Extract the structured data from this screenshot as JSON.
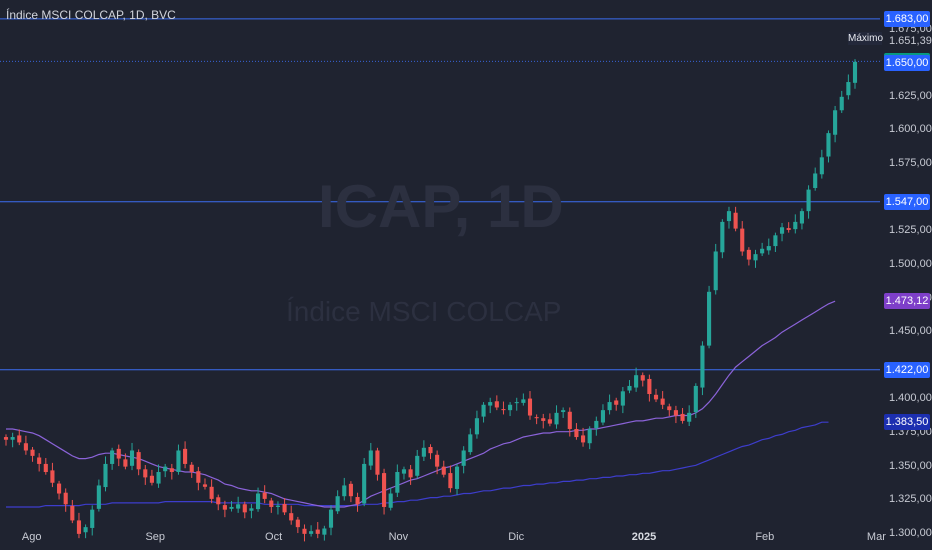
{
  "header": {
    "title": "Índice MSCI COLCAP, 1D, BVC"
  },
  "watermark": {
    "symbol": "ICAP, 1D",
    "name": "Índice MSCI COLCAP"
  },
  "colors": {
    "background": "#1f2330",
    "up": "#26a69a",
    "down": "#ef5350",
    "level_line": "#3b6df0",
    "ma_fast": "#8b63d9",
    "ma_slow": "#3d3dcc",
    "badge_blue": "#2962ff",
    "badge_green": "#089981",
    "badge_purple": "#7e3fc9",
    "badge_navy": "#1c2fb0"
  },
  "labels": {
    "max_label": "Máximo"
  },
  "chart_data": {
    "type": "candlestick",
    "title": "Índice MSCI COLCAP, 1D, BVC",
    "y_axis": {
      "ylim": [
        1288,
        1697
      ],
      "ticks": [
        "1.300,00",
        "1.325,00",
        "1.350,00",
        "1.375,00",
        "1.400,00",
        "1.450,00",
        "1.475,00",
        "1.500,00",
        "1.525,00",
        "1.575,00",
        "1.600,00",
        "1.625,00",
        "1.675,00"
      ],
      "tick_values": [
        1300,
        1325,
        1350,
        1375,
        1400,
        1450,
        1475,
        1500,
        1525,
        1575,
        1600,
        1625,
        1675
      ]
    },
    "x_axis": {
      "labels": [
        {
          "text": "Ago",
          "date": "2024-08-01",
          "bold": false
        },
        {
          "text": "Sep",
          "date": "2024-09-01",
          "bold": false
        },
        {
          "text": "Oct",
          "date": "2024-10-01",
          "bold": false
        },
        {
          "text": "Nov",
          "date": "2024-11-01",
          "bold": false
        },
        {
          "text": "Dic",
          "date": "2024-12-01",
          "bold": false
        },
        {
          "text": "2025",
          "date": "2025-01-01",
          "bold": true
        },
        {
          "text": "Feb",
          "date": "2025-02-01",
          "bold": false
        },
        {
          "text": "Mar",
          "date": "2025-03-01",
          "bold": false
        }
      ]
    },
    "horizontal_levels": [
      {
        "value": 1683.0,
        "label": "1.683,00"
      },
      {
        "value": 1651.39,
        "label": "1.651,39",
        "dotted": true
      },
      {
        "value": 1547.0,
        "label": "1.547,00"
      },
      {
        "value": 1422.0,
        "label": "1.422,00"
      }
    ],
    "price_badges": [
      {
        "value": 1683.0,
        "label": "1.683,00",
        "color": "#2962ff"
      },
      {
        "value": 1651.39,
        "label": "1.651,39",
        "color": "#089981"
      },
      {
        "value": 1650.0,
        "label": "1.650,00",
        "color": "#2962ff"
      },
      {
        "value": 1547.0,
        "label": "1.547,00",
        "color": "#2962ff"
      },
      {
        "value": 1473.12,
        "label": "1.473,12",
        "color": "#7e3fc9"
      },
      {
        "value": 1422.0,
        "label": "1.422,00",
        "color": "#2962ff"
      },
      {
        "value": 1383.5,
        "label": "1.383,50",
        "color": "#1c2fb0"
      }
    ],
    "max_marker": {
      "value": 1651.39,
      "label": "1.651,39"
    },
    "close_series": [
      1370,
      1372,
      1368,
      1362,
      1358,
      1352,
      1346,
      1338,
      1330,
      1322,
      1310,
      1300,
      1305,
      1318,
      1336,
      1352,
      1362,
      1356,
      1350,
      1362,
      1348,
      1342,
      1338,
      1346,
      1350,
      1346,
      1362,
      1352,
      1346,
      1338,
      1335,
      1326,
      1322,
      1318,
      1320,
      1322,
      1316,
      1319,
      1330,
      1326,
      1320,
      1321,
      1316,
      1310,
      1305,
      1300,
      1302,
      1300,
      1304,
      1318,
      1328,
      1336,
      1328,
      1322,
      1352,
      1362,
      1344,
      1320,
      1330,
      1346,
      1348,
      1342,
      1358,
      1364,
      1360,
      1350,
      1344,
      1334,
      1350,
      1362,
      1374,
      1386,
      1396,
      1398,
      1394,
      1392,
      1396,
      1398,
      1400,
      1388,
      1386,
      1384,
      1382,
      1390,
      1392,
      1378,
      1372,
      1368,
      1378,
      1384,
      1392,
      1398,
      1396,
      1406,
      1410,
      1418,
      1414,
      1404,
      1400,
      1396,
      1392,
      1388,
      1384,
      1390,
      1410,
      1440,
      1480,
      1510,
      1532,
      1540,
      1527,
      1510,
      1504,
      1508,
      1512,
      1514,
      1522,
      1528,
      1526,
      1532,
      1540,
      1556,
      1568,
      1580,
      1598,
      1615,
      1625,
      1636,
      1651
    ],
    "ma_fast": [
      1378,
      1378,
      1377,
      1376,
      1375,
      1373,
      1370,
      1367,
      1364,
      1361,
      1358,
      1356,
      1356,
      1357,
      1359,
      1360,
      1360,
      1359,
      1358,
      1357,
      1356,
      1354,
      1352,
      1350,
      1349,
      1348,
      1347,
      1346,
      1346,
      1345,
      1344,
      1342,
      1340,
      1337,
      1336,
      1334,
      1333,
      1332,
      1332,
      1331,
      1330,
      1328,
      1326,
      1325,
      1324,
      1323,
      1322,
      1321,
      1320,
      1320,
      1320,
      1320,
      1321,
      1322,
      1325,
      1328,
      1330,
      1332,
      1334,
      1336,
      1338,
      1340,
      1341,
      1343,
      1345,
      1347,
      1349,
      1350,
      1352,
      1354,
      1356,
      1358,
      1360,
      1363,
      1365,
      1367,
      1368,
      1370,
      1372,
      1373,
      1374,
      1375,
      1375,
      1376,
      1376,
      1376,
      1377,
      1377,
      1378,
      1378,
      1379,
      1380,
      1381,
      1382,
      1383,
      1384,
      1384,
      1385,
      1386,
      1386,
      1387,
      1388,
      1388,
      1388,
      1390,
      1393,
      1398,
      1404,
      1411,
      1418,
      1424,
      1428,
      1432,
      1436,
      1440,
      1443,
      1446,
      1450,
      1453,
      1456,
      1459,
      1462,
      1465,
      1468,
      1471,
      1473
    ],
    "ma_slow": [
      1320,
      1320,
      1320,
      1320,
      1320,
      1320,
      1321,
      1321,
      1321,
      1321,
      1321,
      1321,
      1322,
      1322,
      1322,
      1322,
      1323,
      1323,
      1323,
      1323,
      1323,
      1323,
      1323,
      1323,
      1324,
      1324,
      1324,
      1324,
      1324,
      1324,
      1324,
      1324,
      1323,
      1323,
      1323,
      1323,
      1323,
      1323,
      1323,
      1322,
      1322,
      1322,
      1322,
      1322,
      1322,
      1321,
      1321,
      1321,
      1321,
      1321,
      1321,
      1321,
      1321,
      1321,
      1322,
      1322,
      1322,
      1323,
      1323,
      1324,
      1324,
      1325,
      1325,
      1326,
      1327,
      1327,
      1328,
      1328,
      1329,
      1330,
      1330,
      1331,
      1332,
      1332,
      1333,
      1334,
      1334,
      1335,
      1336,
      1336,
      1337,
      1337,
      1338,
      1338,
      1339,
      1339,
      1340,
      1340,
      1341,
      1341,
      1342,
      1342,
      1343,
      1343,
      1344,
      1344,
      1345,
      1345,
      1346,
      1347,
      1347,
      1348,
      1349,
      1350,
      1351,
      1353,
      1355,
      1357,
      1359,
      1361,
      1363,
      1365,
      1366,
      1368,
      1370,
      1371,
      1373,
      1374,
      1376,
      1377,
      1379,
      1380,
      1381,
      1383,
      1383
    ]
  }
}
